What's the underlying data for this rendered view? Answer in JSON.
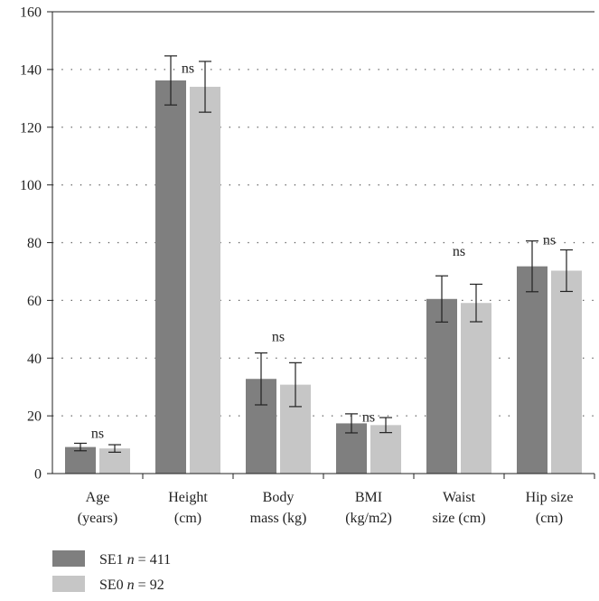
{
  "chart_data": {
    "type": "bar",
    "categories": [
      [
        "Age",
        "(years)"
      ],
      [
        "Height",
        "(cm)"
      ],
      [
        "Body",
        "mass (kg)"
      ],
      [
        "BMI",
        "(kg/m2)"
      ],
      [
        "Waist",
        "size (cm)"
      ],
      [
        "Hip size",
        "(cm)"
      ]
    ],
    "series": [
      {
        "prefix": "SE1 ",
        "n_symbol": "n",
        "n_value": " = 411",
        "color": "#7f7f7f",
        "values": [
          9.2,
          136.2,
          32.8,
          17.4,
          60.5,
          71.8
        ],
        "error": [
          1.3,
          8.5,
          9.0,
          3.3,
          8.0,
          8.8
        ]
      },
      {
        "prefix": "SE0 ",
        "n_symbol": "n",
        "n_value": " = 92",
        "color": "#c6c6c6",
        "values": [
          8.7,
          134.0,
          30.8,
          16.8,
          59.1,
          70.3
        ],
        "error": [
          1.3,
          8.8,
          7.6,
          2.6,
          6.5,
          7.2
        ]
      }
    ],
    "annotations": [
      "ns",
      "ns",
      "ns",
      "ns",
      "ns",
      "ns"
    ],
    "annotation_values": [
      14,
      140.5,
      47.5,
      19.5,
      77,
      81
    ],
    "ylim": [
      0,
      160
    ],
    "yticks": [
      "0",
      "20",
      "40",
      "60",
      "80",
      "100",
      "120",
      "140",
      "160"
    ],
    "grid": true,
    "legend_position": "bottom-left",
    "xlabel": "",
    "ylabel": "",
    "title": ""
  }
}
